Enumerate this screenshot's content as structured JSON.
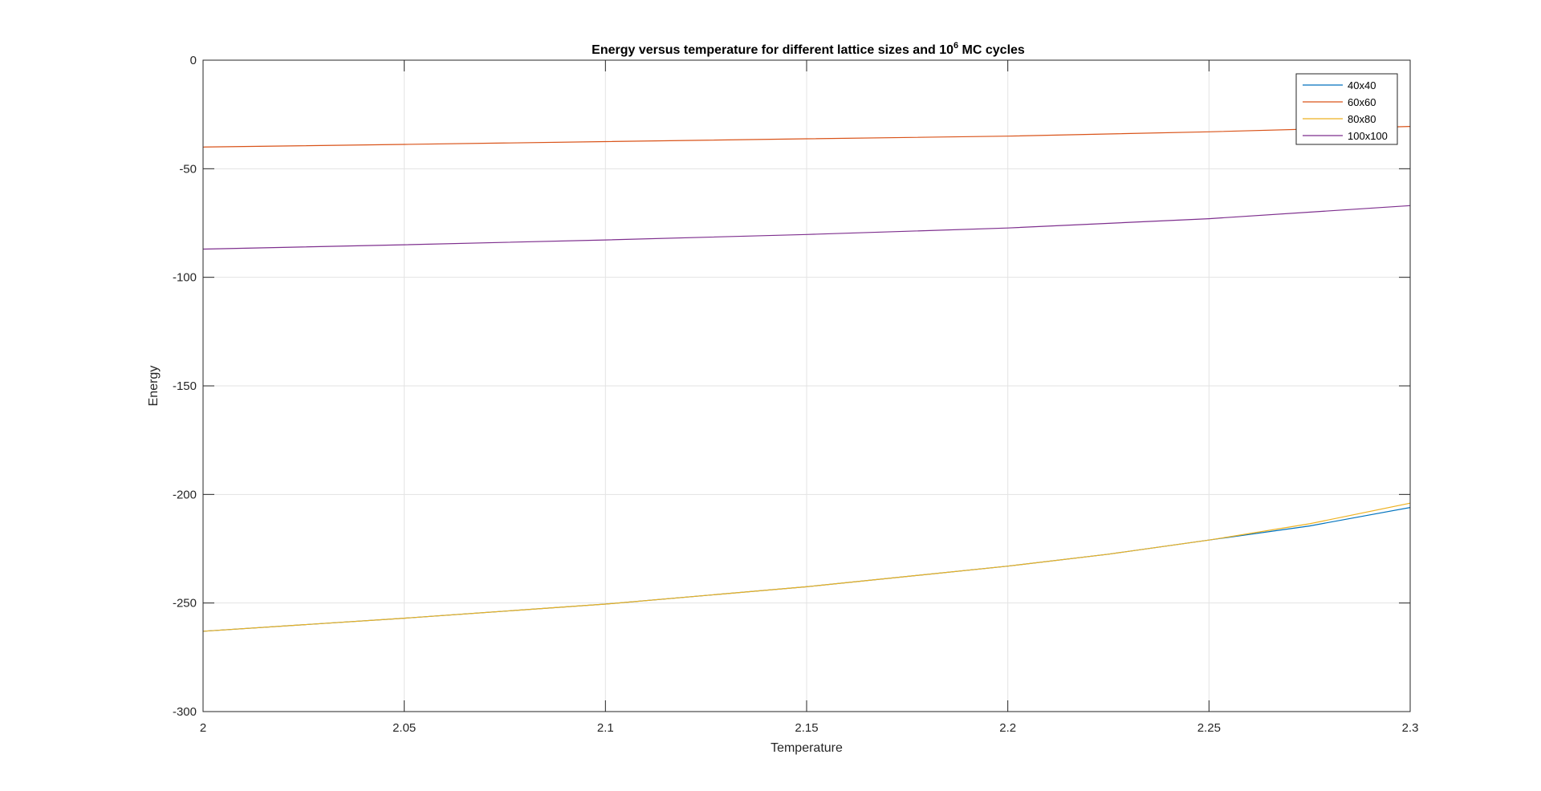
{
  "chart_data": {
    "type": "line",
    "title": "Energy versus temperature for different lattice sizes and 10",
    "title_superscript": "6",
    "title_suffix": " MC cycles",
    "xlabel": "Temperature",
    "ylabel": "Energy",
    "xlim": [
      2,
      2.3
    ],
    "ylim": [
      -300,
      0
    ],
    "xticks": [
      2,
      2.05,
      2.1,
      2.15,
      2.2,
      2.25,
      2.3
    ],
    "xtick_labels": [
      "2",
      "2.05",
      "2.1",
      "2.15",
      "2.2",
      "2.25",
      "2.3"
    ],
    "yticks": [
      0,
      -50,
      -100,
      -150,
      -200,
      -250,
      -300
    ],
    "ytick_labels": [
      "0",
      "-50",
      "-100",
      "-150",
      "-200",
      "-250",
      "-300"
    ],
    "grid": true,
    "legend_position": "top-right",
    "series": [
      {
        "name": "40x40",
        "color": "#0072BD",
        "x": [
          2.0,
          2.05,
          2.1,
          2.15,
          2.2,
          2.225,
          2.25,
          2.275,
          2.3
        ],
        "y": [
          -263,
          -257,
          -250.5,
          -242.5,
          -233,
          -227.5,
          -221,
          -214.5,
          -206
        ]
      },
      {
        "name": "60x60",
        "color": "#D95319",
        "x": [
          2.0,
          2.05,
          2.1,
          2.15,
          2.2,
          2.25,
          2.3
        ],
        "y": [
          -40,
          -38.8,
          -37.5,
          -36.2,
          -35,
          -33,
          -30.5
        ]
      },
      {
        "name": "80x80",
        "color": "#EDB120",
        "x": [
          2.0,
          2.05,
          2.1,
          2.15,
          2.2,
          2.225,
          2.25,
          2.275,
          2.3
        ],
        "y": [
          -263,
          -257,
          -250.5,
          -242.5,
          -233,
          -227.5,
          -221,
          -213.5,
          -204
        ]
      },
      {
        "name": "100x100",
        "color": "#7E2F8E",
        "x": [
          2.0,
          2.05,
          2.1,
          2.15,
          2.2,
          2.25,
          2.3
        ],
        "y": [
          -87,
          -85,
          -82.8,
          -80.3,
          -77.3,
          -73,
          -67
        ]
      }
    ]
  }
}
